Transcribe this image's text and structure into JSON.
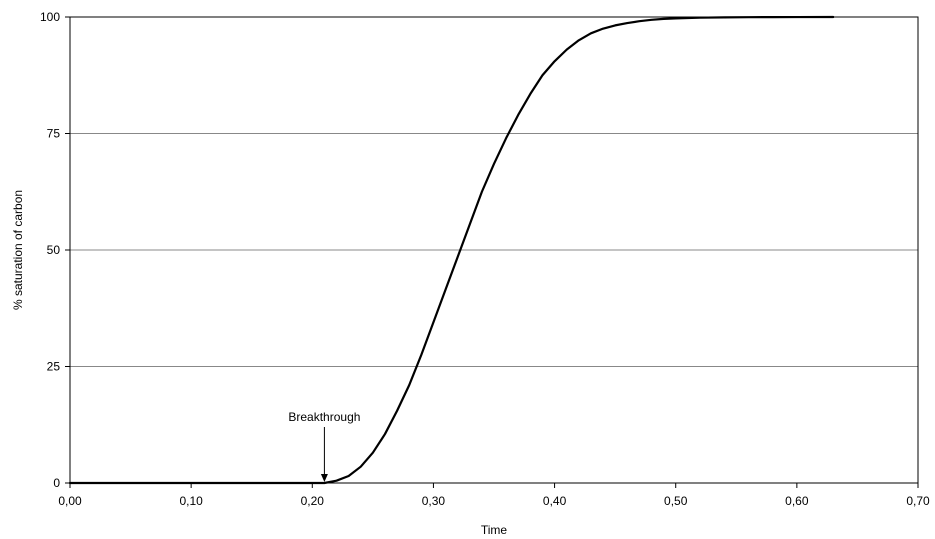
{
  "chart_data": {
    "type": "line",
    "title": "",
    "xlabel": "Time",
    "ylabel": "% saturation of carbon",
    "xlim": [
      0,
      0.7
    ],
    "ylim": [
      0,
      100
    ],
    "x_ticks": [
      "0,00",
      "0,10",
      "0,20",
      "0,30",
      "0,40",
      "0,50",
      "0,60",
      "0,70"
    ],
    "y_ticks": [
      "0",
      "25",
      "50",
      "75",
      "100"
    ],
    "grid": "horizontal",
    "legend": "none",
    "line_color": "#000000",
    "series": [
      {
        "x": [
          0.0,
          0.05,
          0.1,
          0.15,
          0.2,
          0.21,
          0.22,
          0.23,
          0.24,
          0.25,
          0.26,
          0.27,
          0.28,
          0.29,
          0.3,
          0.31,
          0.32,
          0.33,
          0.34,
          0.35,
          0.36,
          0.37,
          0.38,
          0.39,
          0.4,
          0.41,
          0.42,
          0.43,
          0.44,
          0.45,
          0.46,
          0.47,
          0.48,
          0.49,
          0.5,
          0.52,
          0.54,
          0.56,
          0.58,
          0.6,
          0.63
        ],
        "values": [
          0,
          0,
          0,
          0,
          0,
          0,
          0.5,
          1.5,
          3.5,
          6.5,
          10.5,
          15.5,
          21,
          27.5,
          34.5,
          41.5,
          48.5,
          55.5,
          62.5,
          68.5,
          74,
          79,
          83.5,
          87.5,
          90.5,
          93,
          95,
          96.5,
          97.5,
          98.2,
          98.7,
          99.1,
          99.4,
          99.6,
          99.7,
          99.85,
          99.92,
          99.96,
          99.98,
          99.99,
          100
        ]
      }
    ],
    "annotations": [
      {
        "text": "Breakthrough",
        "x": 0.21,
        "y": 0
      }
    ]
  }
}
